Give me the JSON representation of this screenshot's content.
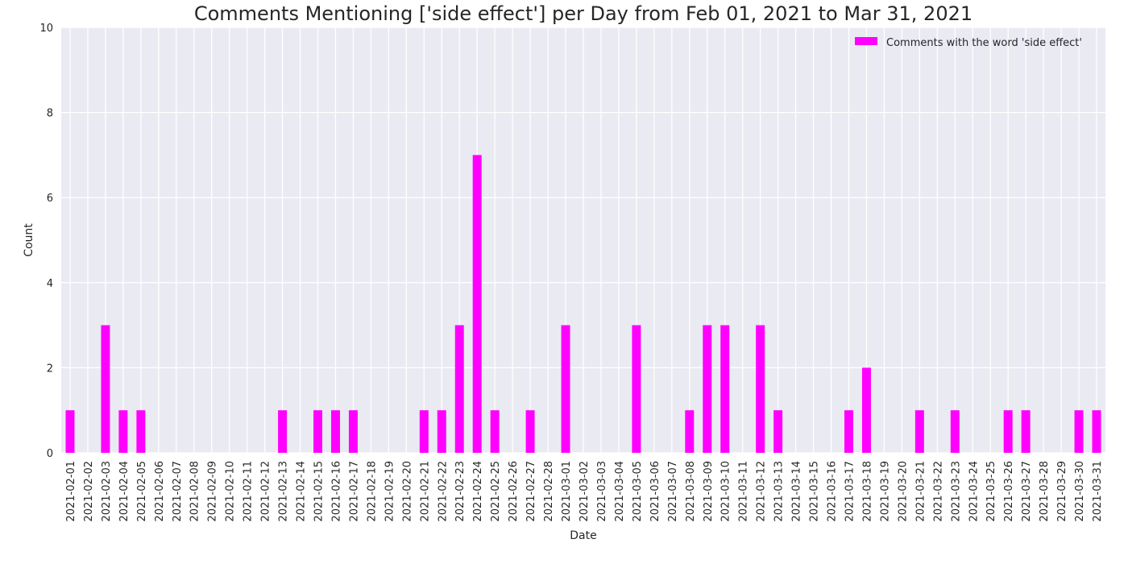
{
  "chart_data": {
    "type": "bar",
    "title": "Comments Mentioning ['side effect'] per Day from Feb 01, 2021 to Mar 31, 2021",
    "xlabel": "Date",
    "ylabel": "Count",
    "ylim": [
      0,
      10
    ],
    "yticks": [
      0,
      2,
      4,
      6,
      8,
      10
    ],
    "grid": true,
    "legend_position": "top-right",
    "categories": [
      "2021-02-01",
      "2021-02-02",
      "2021-02-03",
      "2021-02-04",
      "2021-02-05",
      "2021-02-06",
      "2021-02-07",
      "2021-02-08",
      "2021-02-09",
      "2021-02-10",
      "2021-02-11",
      "2021-02-12",
      "2021-02-13",
      "2021-02-14",
      "2021-02-15",
      "2021-02-16",
      "2021-02-17",
      "2021-02-18",
      "2021-02-19",
      "2021-02-20",
      "2021-02-21",
      "2021-02-22",
      "2021-02-23",
      "2021-02-24",
      "2021-02-25",
      "2021-02-26",
      "2021-02-27",
      "2021-02-28",
      "2021-03-01",
      "2021-03-02",
      "2021-03-03",
      "2021-03-04",
      "2021-03-05",
      "2021-03-06",
      "2021-03-07",
      "2021-03-08",
      "2021-03-09",
      "2021-03-10",
      "2021-03-11",
      "2021-03-12",
      "2021-03-13",
      "2021-03-14",
      "2021-03-15",
      "2021-03-16",
      "2021-03-17",
      "2021-03-18",
      "2021-03-19",
      "2021-03-20",
      "2021-03-21",
      "2021-03-22",
      "2021-03-23",
      "2021-03-24",
      "2021-03-25",
      "2021-03-26",
      "2021-03-27",
      "2021-03-28",
      "2021-03-29",
      "2021-03-30",
      "2021-03-31"
    ],
    "series": [
      {
        "name": "Comments with the word 'side effect'",
        "color": "#ff00ff",
        "values": [
          1,
          0,
          3,
          1,
          1,
          0,
          0,
          0,
          0,
          0,
          0,
          0,
          1,
          0,
          1,
          1,
          1,
          0,
          0,
          0,
          1,
          1,
          3,
          7,
          1,
          0,
          1,
          0,
          3,
          0,
          0,
          0,
          3,
          0,
          0,
          1,
          3,
          3,
          0,
          3,
          1,
          0,
          0,
          0,
          1,
          2,
          0,
          0,
          1,
          0,
          1,
          0,
          0,
          1,
          1,
          0,
          0,
          1,
          1
        ]
      }
    ],
    "colors": {
      "plot_background": "#eaeaf2",
      "grid": "#ffffff",
      "text": "#262626"
    }
  }
}
